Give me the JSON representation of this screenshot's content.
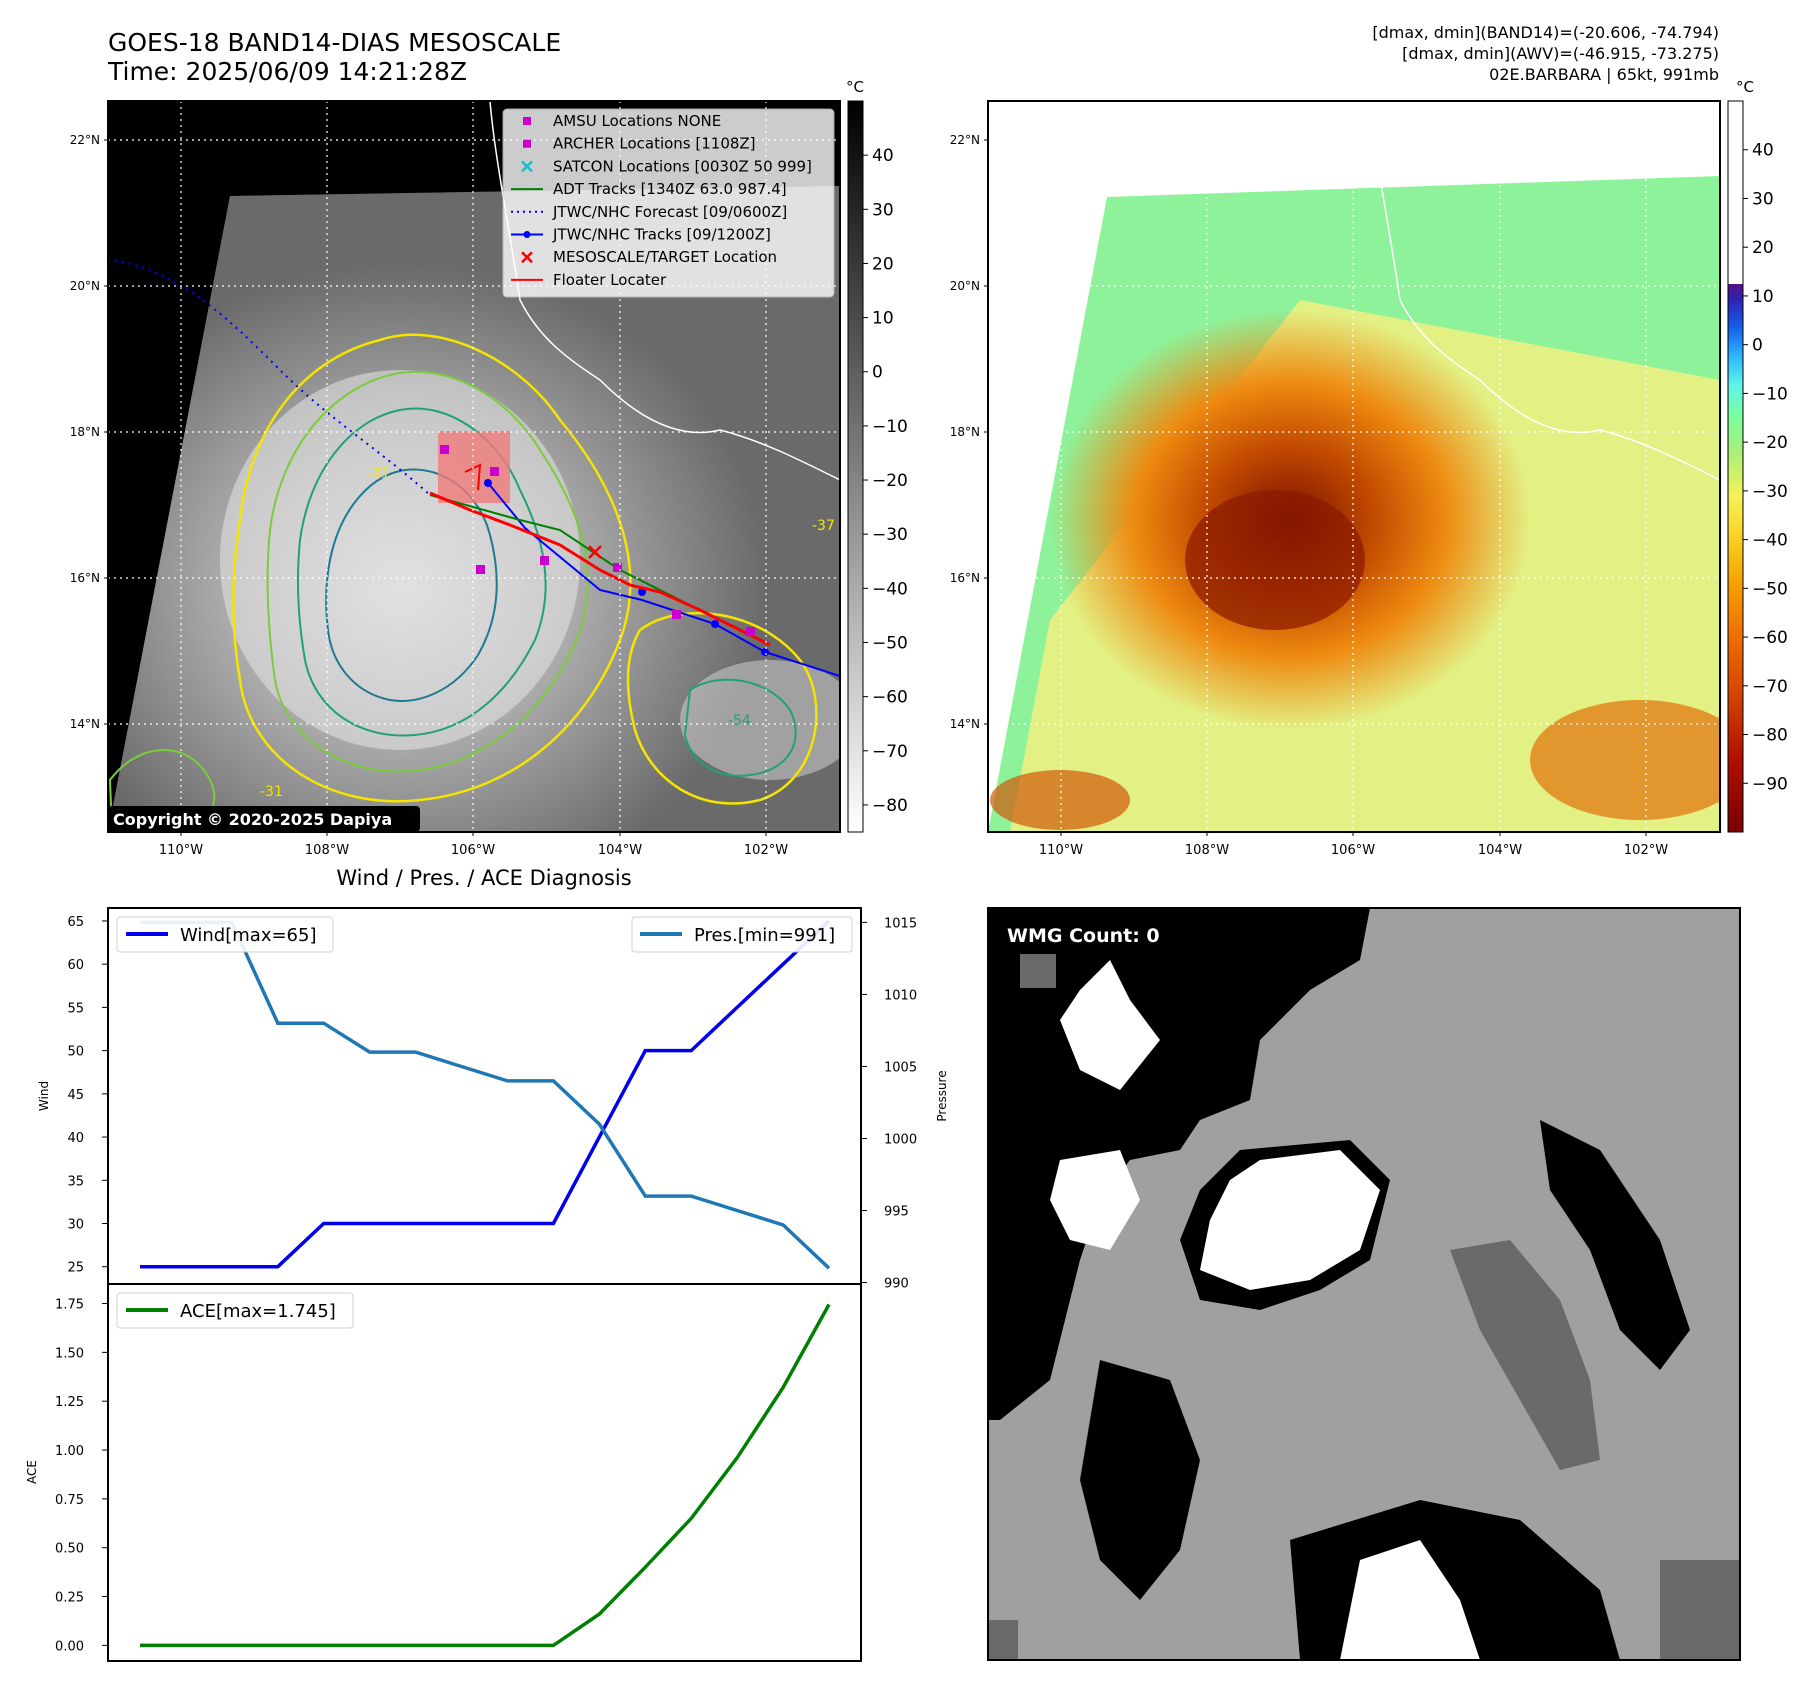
{
  "header": {
    "title_line1": "GOES-18 BAND14-DIAS MESOSCALE",
    "title_line2": "Time: 2025/06/09 14:21:28Z",
    "stats_line1": "[dmax, dmin](BAND14)=(-20.606, -74.794)",
    "stats_line2": "[dmax, dmin](AWV)=(-46.915, -73.275)",
    "stats_line3": "02E.BARBARA | 65kt, 991mb"
  },
  "maps": {
    "lat_labels": [
      "22°N",
      "20°N",
      "18°N",
      "16°N",
      "14°N"
    ],
    "lon_labels": [
      "110°W",
      "108°W",
      "106°W",
      "104°W",
      "102°W"
    ],
    "left_colorbar": {
      "unit": "°C",
      "ticks": [
        "40",
        "30",
        "20",
        "10",
        "0",
        "−10",
        "−20",
        "−30",
        "−40",
        "−50",
        "−60",
        "−70",
        "−80"
      ]
    },
    "right_colorbar": {
      "unit": "°C",
      "ticks": [
        "40",
        "30",
        "20",
        "10",
        "0",
        "−10",
        "−20",
        "−30",
        "−40",
        "−50",
        "−60",
        "−70",
        "−80",
        "−90"
      ]
    },
    "copyright": "Copyright © 2020-2025 Dapiya",
    "contour_labels": [
      "-31",
      "-37",
      "-54"
    ],
    "legend": [
      {
        "label": "AMSU Locations NONE",
        "symbol": "square",
        "color": "#cc00cc"
      },
      {
        "label": "ARCHER Locations [1108Z]",
        "symbol": "square",
        "color": "#cc00cc"
      },
      {
        "label": "SATCON Locations [0030Z 50 999]",
        "symbol": "x",
        "color": "#17becf"
      },
      {
        "label": "ADT Tracks [1340Z 63.0 987.4]",
        "symbol": "line",
        "color": "#008000"
      },
      {
        "label": "JTWC/NHC Forecast [09/0600Z]",
        "symbol": "dotted",
        "color": "#0000ff"
      },
      {
        "label": "JTWC/NHC Tracks [09/1200Z]",
        "symbol": "line-dot",
        "color": "#0000ff"
      },
      {
        "label": "MESOSCALE/TARGET Location",
        "symbol": "x",
        "color": "#ff0000"
      },
      {
        "label": "Floater Locater",
        "symbol": "line",
        "color": "#ff0000"
      }
    ]
  },
  "wmg": {
    "label": "WMG Count: 0"
  },
  "chart_data": [
    {
      "type": "line",
      "title": "Wind / Pres. / ACE Diagnosis",
      "ylabel": "Wind",
      "y2label": "Pressure",
      "ylim": [
        23.0,
        66.5
      ],
      "y2lim": [
        989.9,
        1016.0
      ],
      "yticks": [
        25,
        30,
        35,
        40,
        45,
        50,
        55,
        60,
        65
      ],
      "y2ticks": [
        990,
        995,
        1000,
        1005,
        1010,
        1015
      ],
      "series": [
        {
          "name": "Wind[max=65]",
          "color": "#0000ee",
          "axis": "left",
          "values": [
            25,
            25,
            25,
            25,
            30,
            30,
            30,
            30,
            30,
            30,
            40,
            50,
            50,
            55,
            60,
            65
          ]
        },
        {
          "name": "Pres.[min=991]",
          "color": "#1f77b4",
          "axis": "right",
          "values": [
            1015,
            1015,
            1015,
            1008,
            1008,
            1006,
            1006,
            1005,
            1004,
            1004,
            1001,
            996,
            996,
            995,
            994,
            991
          ]
        }
      ]
    },
    {
      "type": "line",
      "ylabel": "ACE",
      "ylim": [
        -0.08,
        1.85
      ],
      "yticks": [
        "0.00",
        "0.25",
        "0.50",
        "0.75",
        "1.00",
        "1.25",
        "1.50",
        "1.75"
      ],
      "series": [
        {
          "name": "ACE[max=1.745]",
          "color": "#008000",
          "values": [
            0,
            0,
            0,
            0,
            0,
            0,
            0,
            0,
            0,
            0,
            0.16,
            0.4,
            0.65,
            0.96,
            1.32,
            1.745
          ]
        }
      ]
    }
  ]
}
